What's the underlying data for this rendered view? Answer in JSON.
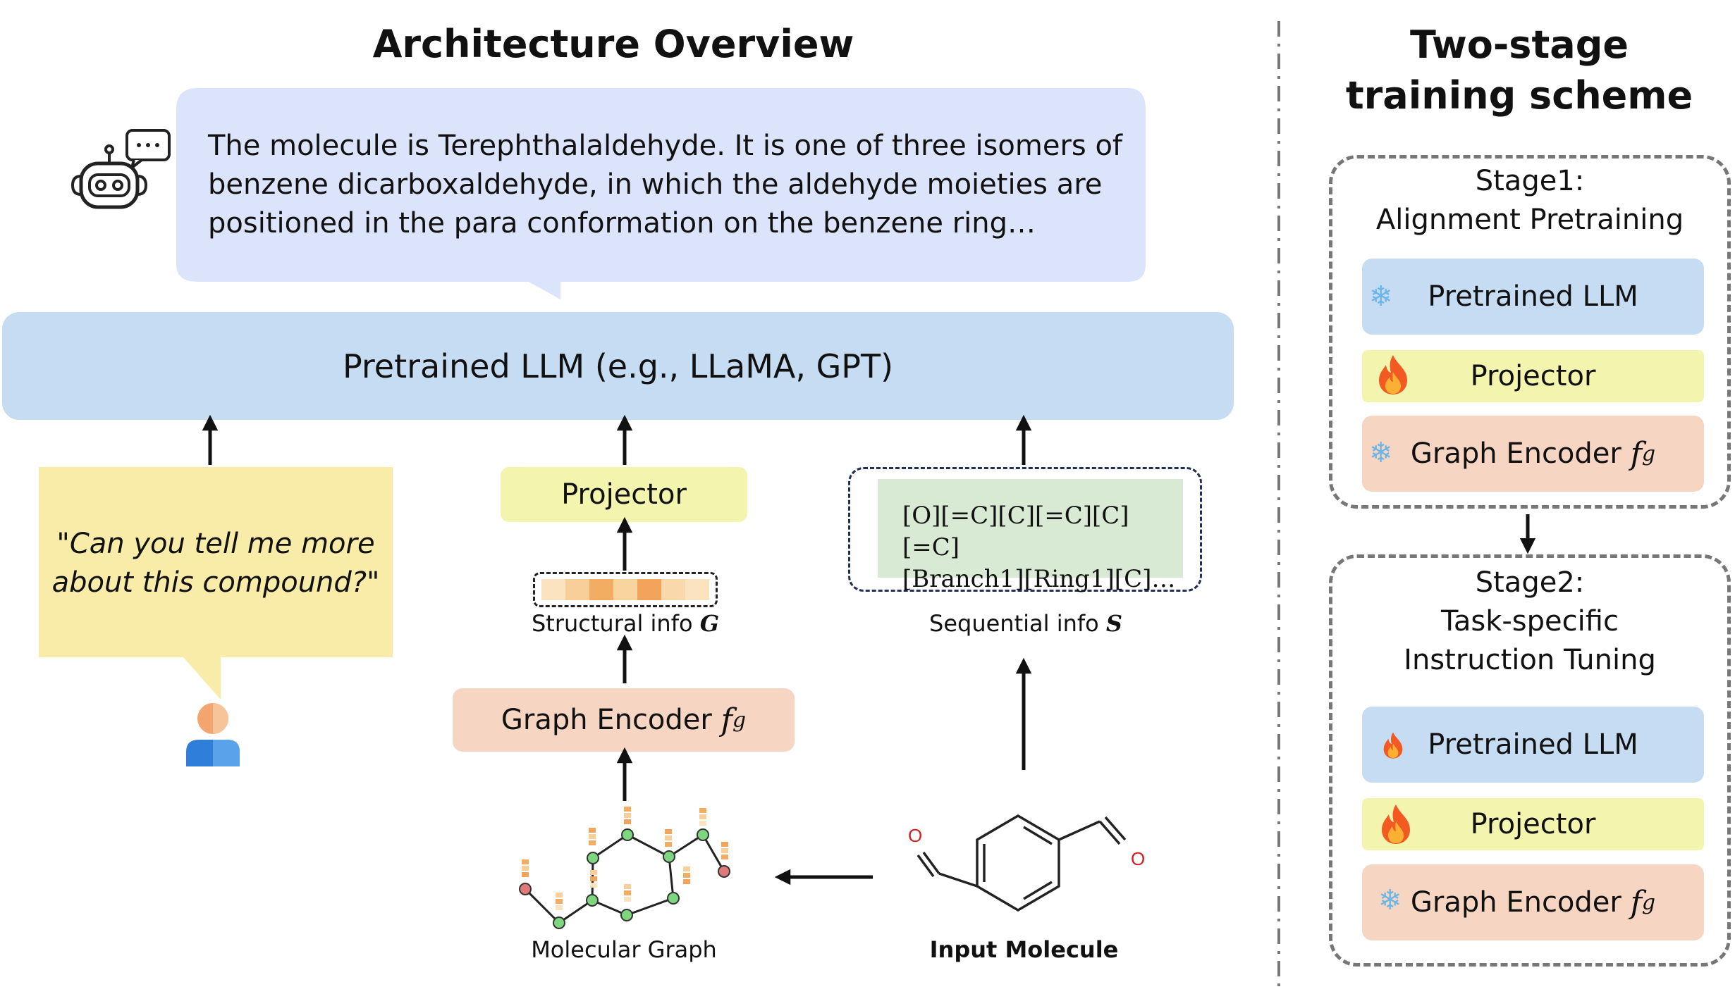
{
  "titles": {
    "architecture": "Architecture Overview",
    "training_line1": "Two-stage",
    "training_line2": "training scheme"
  },
  "output_bubble": {
    "line1": "The molecule is Terephthalaldehyde. It is one of three isomers of",
    "line2": "benzene dicarboxaldehyde, in which the aldehyde moieties are",
    "line3": "positioned in the para conformation on the benzene ring…"
  },
  "llm": {
    "label": "Pretrained LLM (e.g., LLaMA, GPT)"
  },
  "user_bubble": {
    "line1": "\"Can you tell me more",
    "line2": "about this compound?\""
  },
  "projector": {
    "label": "Projector"
  },
  "structural": {
    "label": "Structural info",
    "symbol": "G"
  },
  "graph_encoder": {
    "label": "Graph Encoder",
    "symbol": "f",
    "subscript": "g"
  },
  "sequence": {
    "line1": "[O][=C][C][=C][C][=C]",
    "line2": "[Branch1][Ring1][C]…",
    "label": "Sequential info",
    "symbol": "S"
  },
  "molecular_graph": {
    "label": "Molecular Graph"
  },
  "input_molecule": {
    "label": "Input Molecule",
    "atom_left": "O",
    "atom_right": "O"
  },
  "stage1": {
    "title_line1": "Stage1:",
    "title_line2": "Alignment Pretraining",
    "llm": "Pretrained LLM",
    "projector": "Projector",
    "encoder": "Graph Encoder"
  },
  "stage2": {
    "title_line1": "Stage2:",
    "title_line2": "Task-specific",
    "title_line3": "Instruction Tuning",
    "llm": "Pretrained LLM",
    "projector": "Projector",
    "encoder": "Graph Encoder"
  },
  "icons": {
    "frozen": "snowflake-icon",
    "trainable": "fire-icon",
    "robot": "robot-icon",
    "user": "user-icon"
  },
  "colors": {
    "llm": "#c6dcf2",
    "projector": "#f3f4ae",
    "encoder": "#f6d6c3",
    "output_bubble": "#dbe4fa",
    "user_bubble": "#f8eca8",
    "sequence": "#d9ead4",
    "node": "#7ed67e",
    "terminal_node": "#e07a7a"
  }
}
